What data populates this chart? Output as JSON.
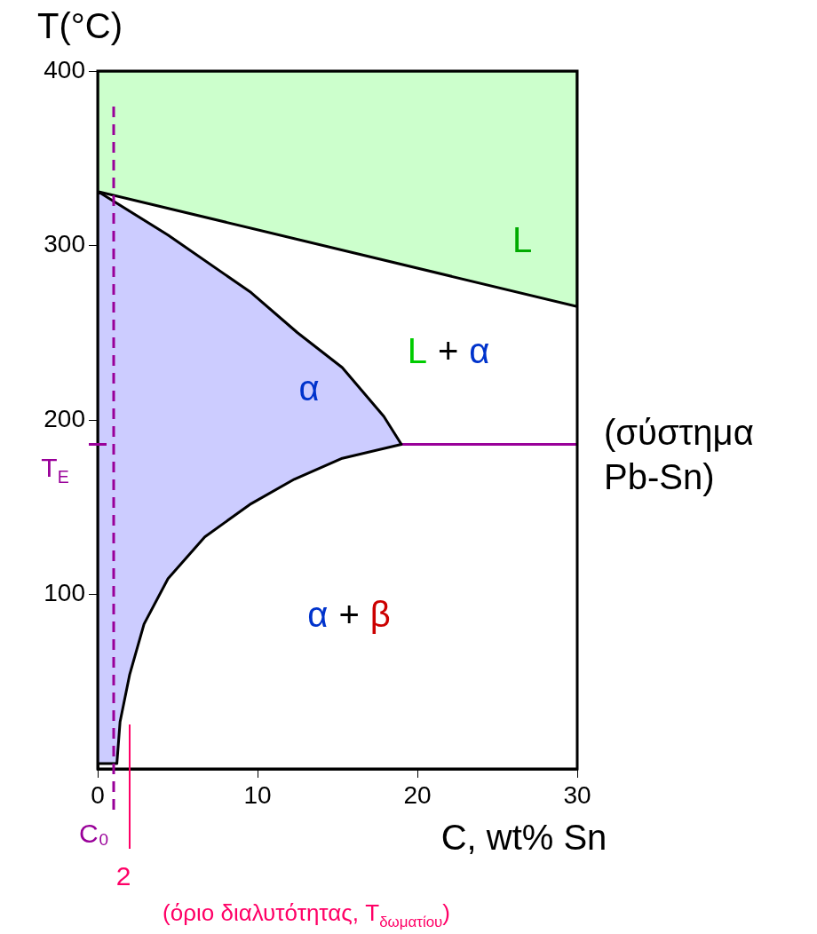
{
  "chart_data": {
    "type": "area",
    "ylabel": "T(°C)",
    "xlabel": "C, wt% Sn",
    "xlim": [
      0,
      30
    ],
    "xticks": [
      0,
      10,
      20,
      30
    ],
    "ylim": [
      0,
      400
    ],
    "yticks": [
      100,
      200,
      300,
      400
    ],
    "grid": false,
    "legend": false,
    "series": [
      {
        "color": "#ccffcc",
        "x": [
          0,
          30,
          30,
          0,
          0
        ],
        "values": [
          331,
          265,
          400,
          400,
          331
        ]
      },
      {
        "color": "#ccccff",
        "x": [
          0,
          4.4,
          9.6,
          12.5,
          15.3,
          17.9,
          19,
          15.3,
          12.3,
          9.6,
          6.7,
          4.4,
          2.9,
          2,
          1.4,
          1.2,
          0,
          0
        ],
        "values": [
          331,
          306,
          273,
          250,
          230,
          202,
          186,
          178,
          166,
          152,
          133,
          109,
          83,
          54,
          27,
          3,
          3,
          331
        ]
      },
      {
        "type": "line",
        "color": "#990099",
        "x": [
          19,
          30
        ],
        "values": [
          186,
          186
        ]
      }
    ],
    "ref_lines": [
      {
        "axis": "x",
        "value": 1,
        "label": "C₀",
        "color": "#990099",
        "line_style": "dashed"
      },
      {
        "axis": "y",
        "value": 186,
        "label": "T$_{E}$",
        "color": "#990099",
        "line_style": "solid"
      },
      {
        "axis": "x",
        "value": 2,
        "label": "2",
        "color": "#ff0066",
        "line_style": "solid"
      }
    ],
    "annotations": [
      "L",
      "L + α",
      "α",
      "α + β",
      "(σύστημα Pb-Sn)",
      "(όριο διαλυτότητας, T$_{δωματίου}$)"
    ]
  }
}
